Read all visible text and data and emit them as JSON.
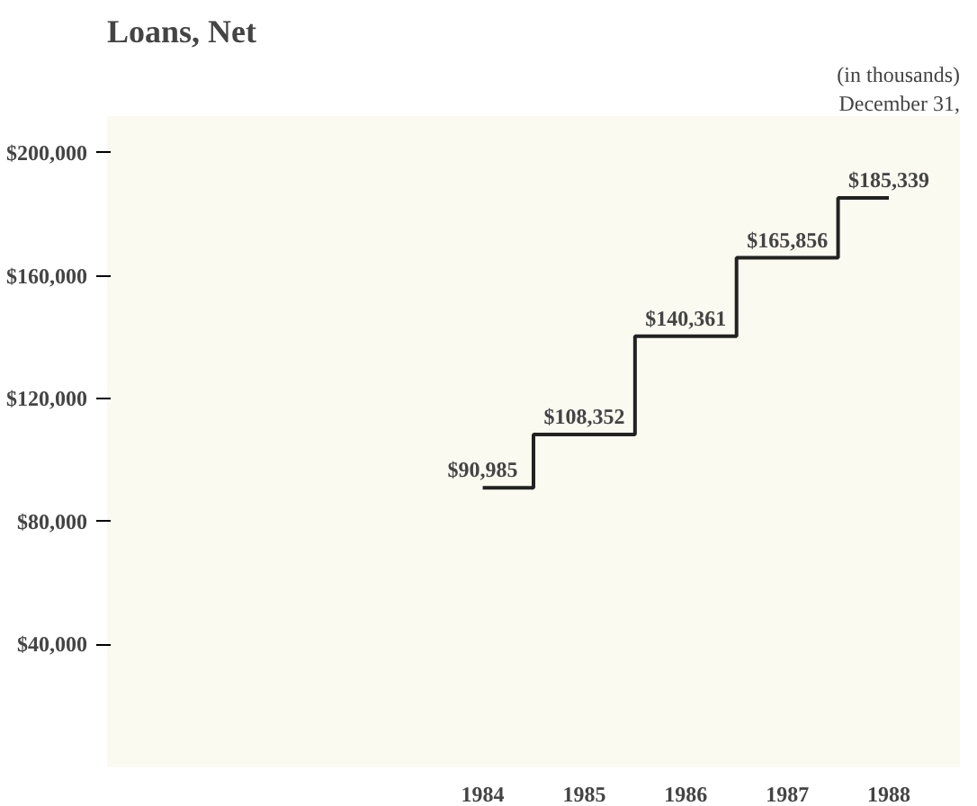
{
  "chart_data": {
    "type": "step",
    "title": "Loans, Net",
    "annotations": [
      "(in thousands)",
      "December 31,"
    ],
    "x": [
      1984,
      1985,
      1986,
      1987,
      1988
    ],
    "values": [
      90985,
      108352,
      140361,
      165856,
      185339
    ],
    "color": "#222222",
    "value_labels": [
      "$90,985",
      "$108,352",
      "$140,361",
      "$165,856",
      "$185,339"
    ],
    "xlim": [
      1980.3,
      1988.7
    ],
    "xticks": [
      1984,
      1985,
      1986,
      1987,
      1988
    ],
    "ylim": [
      0,
      212000
    ],
    "yticks": [
      {
        "value": 40000,
        "label": "$40,000"
      },
      {
        "value": 80000,
        "label": "$80,000"
      },
      {
        "value": 120000,
        "label": "$120,000"
      },
      {
        "value": 160000,
        "label": "$160,000"
      },
      {
        "value": 200000,
        "label": "$200,000"
      }
    ],
    "grid": false
  }
}
